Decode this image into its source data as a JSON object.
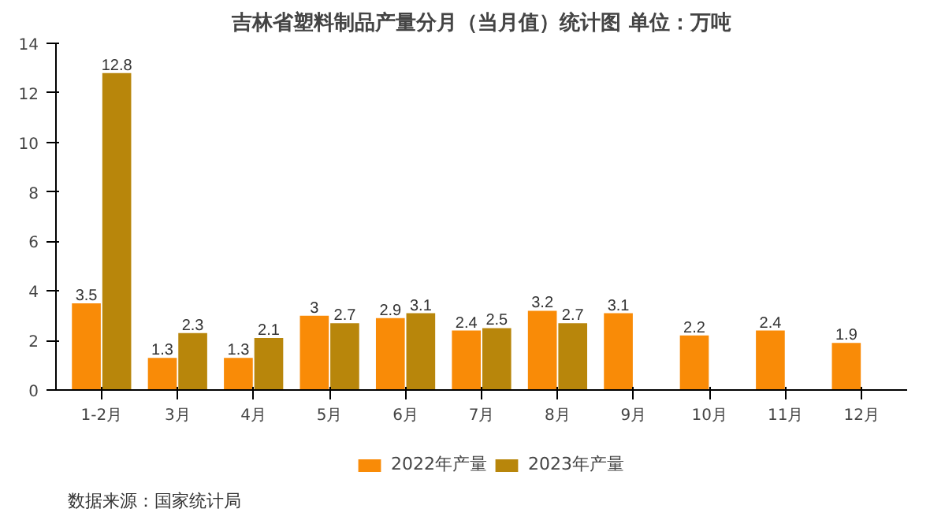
{
  "chart_data": {
    "type": "bar",
    "title": "吉林省塑料制品产量分月（当月值）统计图 单位：万吨",
    "categories": [
      "1-2月",
      "3月",
      "4月",
      "5月",
      "6月",
      "7月",
      "8月",
      "9月",
      "10月",
      "11月",
      "12月"
    ],
    "series": [
      {
        "name": "2022年产量",
        "color": "#f98b07",
        "values": [
          3.5,
          1.3,
          1.3,
          3,
          2.9,
          2.4,
          3.2,
          3.1,
          2.2,
          2.4,
          1.9
        ]
      },
      {
        "name": "2023年产量",
        "color": "#b8860b",
        "values": [
          12.8,
          2.3,
          2.1,
          2.7,
          3.1,
          2.5,
          2.7,
          null,
          null,
          null,
          null
        ]
      }
    ],
    "ylim": [
      0,
      14
    ],
    "yticks": [
      0,
      2,
      4,
      6,
      8,
      10,
      12,
      14
    ],
    "grid": false,
    "legend": "bottom",
    "data_labels": true,
    "annotations": [
      "数据来源：国家统计局"
    ]
  }
}
